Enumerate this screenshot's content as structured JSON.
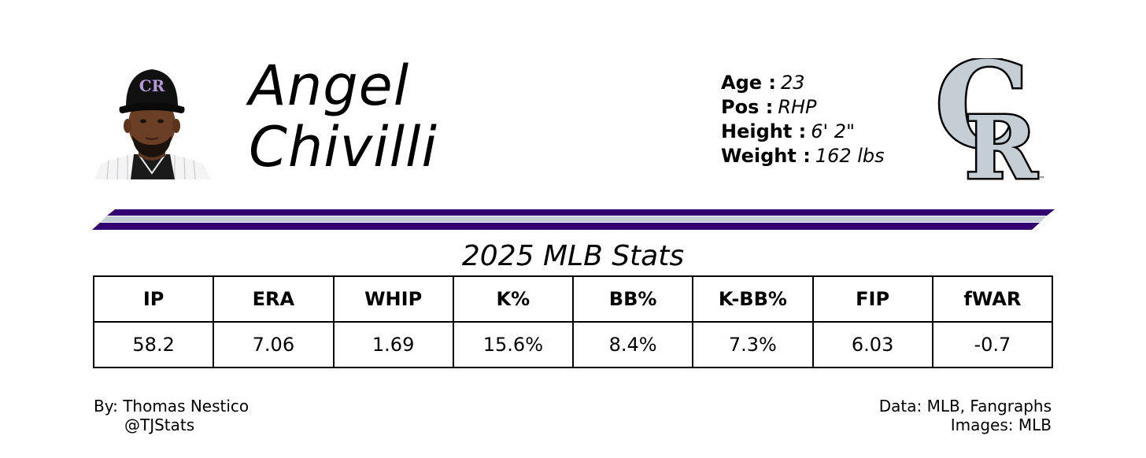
{
  "player": {
    "first_name": "Angel",
    "last_name": "Chivilli",
    "headshot_icon": "player-headshot",
    "cap_logo_text": "CR"
  },
  "bio": [
    {
      "label": "Age",
      "value": "23"
    },
    {
      "label": "Pos",
      "value": "RHP"
    },
    {
      "label": "Height",
      "value": "6' 2\""
    },
    {
      "label": "Weight",
      "value": "162 lbs"
    }
  ],
  "team_logo": {
    "icon": "colorado-rockies-cr-logo",
    "tm_mark": "™",
    "colors": {
      "purple": "#33006F",
      "silver": "#C4CED4",
      "black": "#000000"
    }
  },
  "stats": {
    "title": "2025 MLB Stats",
    "headers": [
      "IP",
      "ERA",
      "WHIP",
      "K%",
      "BB%",
      "K-BB%",
      "FIP",
      "fWAR"
    ],
    "values": [
      "58.2",
      "7.06",
      "1.69",
      "15.6%",
      "8.4%",
      "7.3%",
      "6.03",
      "-0.7"
    ]
  },
  "credits": {
    "author": "By: Thomas Nestico",
    "handle": "@TJStats",
    "data_source": "Data: MLB, Fangraphs",
    "images_source": "Images: MLB"
  }
}
